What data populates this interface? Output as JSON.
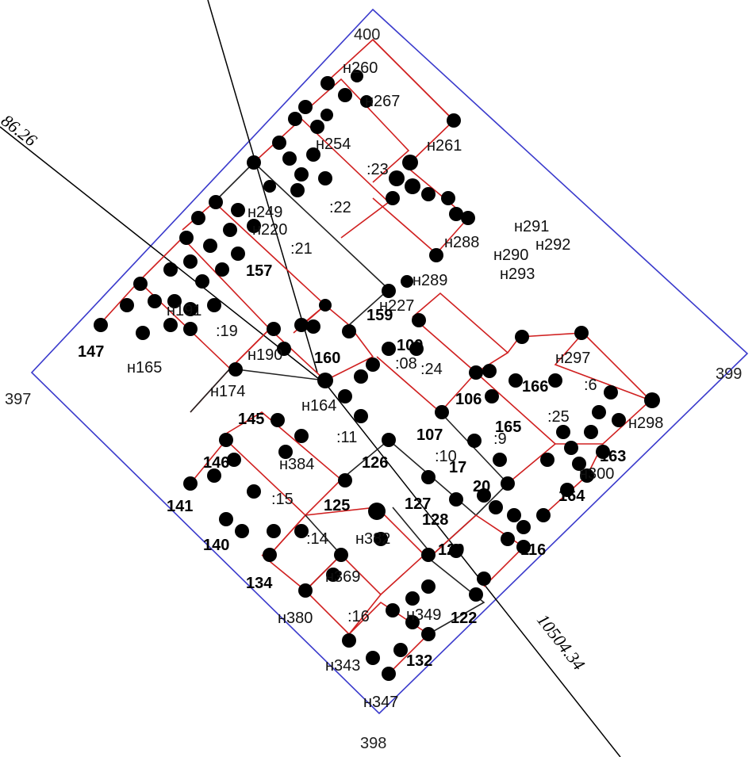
{
  "corner_labels": {
    "top": "400",
    "right": "399",
    "bottom": "398",
    "left": "397"
  },
  "dimensions": {
    "left_line": "86.26",
    "right_line": "10504.34"
  },
  "labels": [
    {
      "text": "н260",
      "bold": false
    },
    {
      "text": "н267",
      "bold": false
    },
    {
      "text": "н254",
      "bold": false
    },
    {
      "text": "н261",
      "bold": false
    },
    {
      "text": ":23",
      "bold": false
    },
    {
      "text": ":22",
      "bold": false
    },
    {
      "text": "н288",
      "bold": false
    },
    {
      "text": "н289",
      "bold": false
    },
    {
      "text": "н291",
      "bold": false
    },
    {
      "text": "н292",
      "bold": false
    },
    {
      "text": "н290",
      "bold": false
    },
    {
      "text": "н293",
      "bold": false
    },
    {
      "text": "н220",
      "bold": false
    },
    {
      "text": ":21",
      "bold": false
    },
    {
      "text": "н249",
      "bold": false
    },
    {
      "text": "н227",
      "bold": false
    },
    {
      "text": "159",
      "bold": true
    },
    {
      "text": "157",
      "bold": true
    },
    {
      "text": "н191",
      "bold": false
    },
    {
      "text": "147",
      "bold": true
    },
    {
      "text": "н165",
      "bold": false
    },
    {
      "text": ":19",
      "bold": false
    },
    {
      "text": "н190",
      "bold": false
    },
    {
      "text": "160",
      "bold": true
    },
    {
      "text": "109",
      "bold": true
    },
    {
      "text": ":08",
      "bold": false
    },
    {
      "text": ":24",
      "bold": false
    },
    {
      "text": "н297",
      "bold": false
    },
    {
      "text": ":6",
      "bold": false
    },
    {
      "text": "н298",
      "bold": false
    },
    {
      "text": "106",
      "bold": true
    },
    {
      "text": "166",
      "bold": true
    },
    {
      "text": "н174",
      "bold": false
    },
    {
      "text": "н164",
      "bold": false
    },
    {
      "text": "145",
      "bold": true
    },
    {
      "text": "107",
      "bold": true
    },
    {
      "text": ":9",
      "bold": false
    },
    {
      "text": ":25",
      "bold": false
    },
    {
      "text": "165",
      "bold": true
    },
    {
      "text": "163",
      "bold": true
    },
    {
      "text": "н300",
      "bold": false
    },
    {
      "text": "164",
      "bold": true
    },
    {
      "text": ":11",
      "bold": false
    },
    {
      "text": ":10",
      "bold": false
    },
    {
      "text": "17",
      "bold": true
    },
    {
      "text": "126",
      "bold": true
    },
    {
      "text": "н384",
      "bold": false
    },
    {
      "text": "146",
      "bold": true
    },
    {
      "text": "141",
      "bold": true
    },
    {
      "text": ":15",
      "bold": false
    },
    {
      "text": "125",
      "bold": true
    },
    {
      "text": "127",
      "bold": true
    },
    {
      "text": "128",
      "bold": true
    },
    {
      "text": "20",
      "bold": true
    },
    {
      "text": "140",
      "bold": true
    },
    {
      "text": ":14",
      "bold": false
    },
    {
      "text": "н382",
      "bold": false
    },
    {
      "text": "116",
      "bold": true
    },
    {
      "text": "129",
      "bold": true
    },
    {
      "text": "н369",
      "bold": false
    },
    {
      "text": "134",
      "bold": true
    },
    {
      "text": "н380",
      "bold": false
    },
    {
      "text": ":16",
      "bold": false
    },
    {
      "text": "122",
      "bold": true
    },
    {
      "text": "н349",
      "bold": false
    },
    {
      "text": "132",
      "bold": true
    },
    {
      "text": "н343",
      "bold": false
    },
    {
      "text": "н347",
      "bold": false
    }
  ]
}
